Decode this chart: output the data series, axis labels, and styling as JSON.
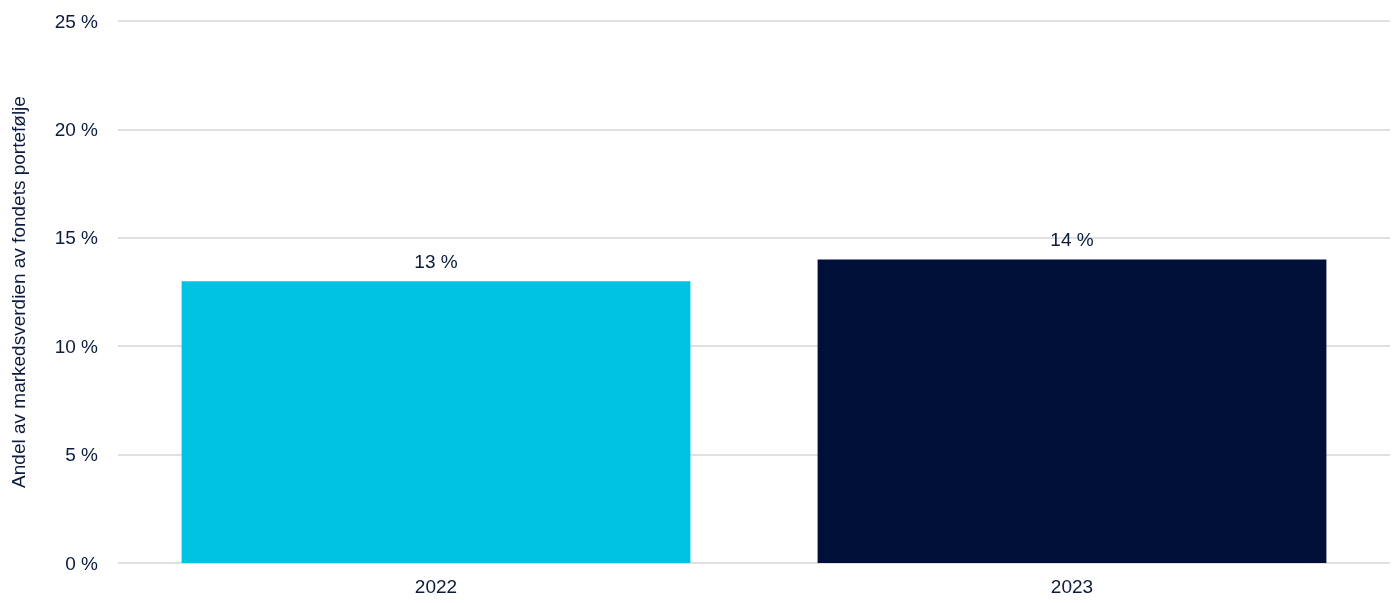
{
  "chart_data": {
    "type": "bar",
    "ylabel": "Andel av markedsverdien av fondets portefølje",
    "categories": [
      "2022",
      "2023"
    ],
    "values": [
      13,
      14
    ],
    "colors": [
      "#00c3e3",
      "#000f38"
    ],
    "ylim": [
      0,
      25
    ],
    "yticks": [
      {
        "value": 0,
        "label": "0 %"
      },
      {
        "value": 5,
        "label": "5 %"
      },
      {
        "value": 10,
        "label": "10 %"
      },
      {
        "value": 15,
        "label": "15 %"
      },
      {
        "value": 20,
        "label": "20 %"
      },
      {
        "value": 25,
        "label": "25 %"
      }
    ],
    "grid": "y",
    "value_labels": [
      "13 %",
      "14 %"
    ]
  }
}
